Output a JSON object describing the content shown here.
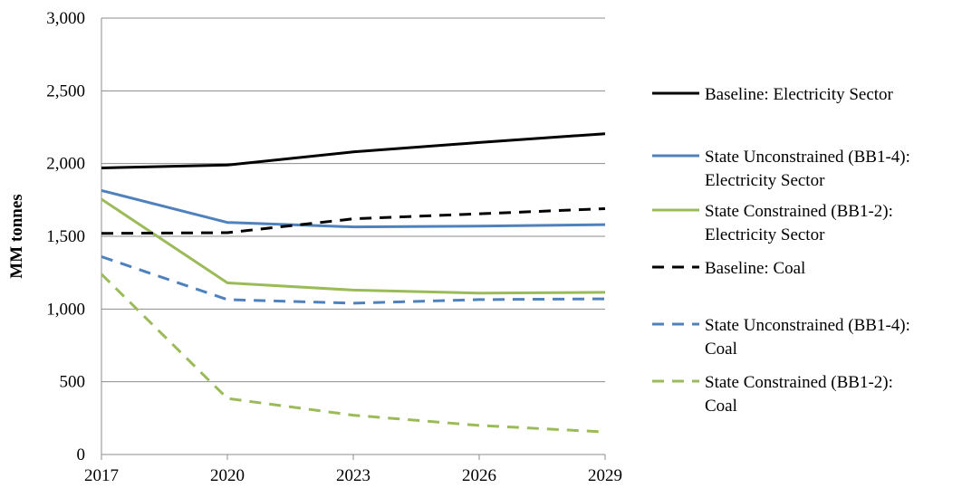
{
  "chart_data": {
    "type": "line",
    "title": "",
    "xlabel": "",
    "ylabel": "MM tonnes",
    "x": [
      2017,
      2020,
      2023,
      2026,
      2029
    ],
    "x_tick_labels": [
      "2017",
      "2020",
      "2023",
      "2026",
      "2029"
    ],
    "ylim": [
      0,
      3000
    ],
    "y_ticks": [
      0,
      500,
      1000,
      1500,
      2000,
      2500,
      3000
    ],
    "y_tick_labels": [
      "0",
      "500",
      "1,000",
      "1,500",
      "2,000",
      "2,500",
      "3,000"
    ],
    "grid": "horizontal",
    "legend_position": "right",
    "series": [
      {
        "name_lines": [
          "Baseline: Electricity Sector"
        ],
        "color": "#000000",
        "dash": "solid",
        "values": [
          1970,
          1990,
          2080,
          2145,
          2205
        ]
      },
      {
        "name_lines": [
          "State Unconstrained (BB1-4):",
          "Electricity Sector"
        ],
        "color": "#4f81bd",
        "dash": "solid",
        "values": [
          1815,
          1595,
          1565,
          1570,
          1580
        ]
      },
      {
        "name_lines": [
          "State Constrained (BB1-2):",
          "Electricity Sector"
        ],
        "color": "#9bbb59",
        "dash": "solid",
        "values": [
          1755,
          1180,
          1130,
          1110,
          1115
        ]
      },
      {
        "name_lines": [
          "Baseline: Coal"
        ],
        "color": "#000000",
        "dash": "dashed",
        "values": [
          1520,
          1525,
          1620,
          1655,
          1690
        ]
      },
      {
        "name_lines": [
          "State Unconstrained (BB1-4):",
          "Coal"
        ],
        "color": "#4f81bd",
        "dash": "dashed",
        "values": [
          1360,
          1065,
          1040,
          1065,
          1070
        ]
      },
      {
        "name_lines": [
          "State Constrained (BB1-2):",
          "Coal"
        ],
        "color": "#9bbb59",
        "dash": "dashed",
        "values": [
          1240,
          385,
          270,
          200,
          155
        ]
      }
    ]
  }
}
